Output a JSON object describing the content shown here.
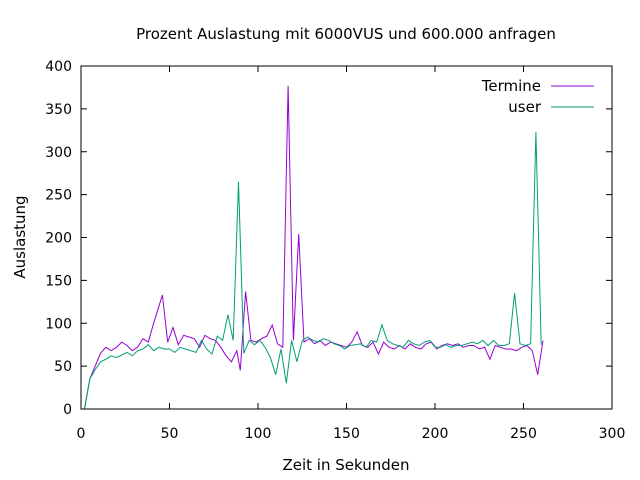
{
  "chart_data": {
    "type": "line",
    "title": "Prozent Auslastung mit 6000VUS und 600.000 anfragen",
    "xlabel": "Zeit in Sekunden",
    "ylabel": "Auslastung",
    "xlim": [
      0,
      300
    ],
    "ylim": [
      0,
      400
    ],
    "xticks": [
      0,
      50,
      100,
      150,
      200,
      250,
      300
    ],
    "yticks": [
      0,
      50,
      100,
      150,
      200,
      250,
      300,
      350,
      400
    ],
    "grid": false,
    "legend": "top-right",
    "series": [
      {
        "name": "Termine",
        "color": "#9400d3",
        "points": [
          [
            2,
            0
          ],
          [
            5,
            35
          ],
          [
            8,
            50
          ],
          [
            11,
            65
          ],
          [
            14,
            72
          ],
          [
            17,
            68
          ],
          [
            20,
            72
          ],
          [
            23,
            78
          ],
          [
            26,
            74
          ],
          [
            29,
            68
          ],
          [
            32,
            72
          ],
          [
            35,
            82
          ],
          [
            38,
            78
          ],
          [
            41,
            100
          ],
          [
            46,
            133
          ],
          [
            49,
            78
          ],
          [
            52,
            95
          ],
          [
            55,
            75
          ],
          [
            58,
            86
          ],
          [
            61,
            84
          ],
          [
            64,
            82
          ],
          [
            67,
            72
          ],
          [
            70,
            86
          ],
          [
            73,
            82
          ],
          [
            76,
            80
          ],
          [
            79,
            72
          ],
          [
            82,
            62
          ],
          [
            85,
            55
          ],
          [
            88,
            68
          ],
          [
            90,
            45
          ],
          [
            93,
            137
          ],
          [
            96,
            80
          ],
          [
            99,
            78
          ],
          [
            102,
            82
          ],
          [
            105,
            85
          ],
          [
            108,
            98
          ],
          [
            111,
            76
          ],
          [
            114,
            72
          ],
          [
            117,
            377
          ],
          [
            120,
            80
          ],
          [
            123,
            204
          ],
          [
            126,
            78
          ],
          [
            129,
            82
          ],
          [
            132,
            76
          ],
          [
            135,
            80
          ],
          [
            138,
            74
          ],
          [
            141,
            78
          ],
          [
            144,
            76
          ],
          [
            147,
            74
          ],
          [
            150,
            72
          ],
          [
            153,
            78
          ],
          [
            156,
            90
          ],
          [
            159,
            74
          ],
          [
            162,
            72
          ],
          [
            165,
            78
          ],
          [
            168,
            64
          ],
          [
            171,
            78
          ],
          [
            174,
            72
          ],
          [
            177,
            70
          ],
          [
            180,
            74
          ],
          [
            183,
            70
          ],
          [
            186,
            76
          ],
          [
            189,
            72
          ],
          [
            192,
            70
          ],
          [
            195,
            76
          ],
          [
            198,
            78
          ],
          [
            201,
            70
          ],
          [
            204,
            74
          ],
          [
            207,
            76
          ],
          [
            210,
            74
          ],
          [
            213,
            76
          ],
          [
            216,
            72
          ],
          [
            219,
            74
          ],
          [
            222,
            74
          ],
          [
            225,
            70
          ],
          [
            228,
            72
          ],
          [
            231,
            58
          ],
          [
            234,
            74
          ],
          [
            237,
            72
          ],
          [
            240,
            70
          ],
          [
            243,
            70
          ],
          [
            246,
            68
          ],
          [
            249,
            72
          ],
          [
            252,
            74
          ],
          [
            255,
            68
          ],
          [
            258,
            40
          ],
          [
            261,
            80
          ]
        ]
      },
      {
        "name": "user",
        "color": "#009e73",
        "points": [
          [
            2,
            0
          ],
          [
            5,
            35
          ],
          [
            8,
            46
          ],
          [
            11,
            55
          ],
          [
            14,
            58
          ],
          [
            17,
            62
          ],
          [
            20,
            60
          ],
          [
            23,
            63
          ],
          [
            26,
            66
          ],
          [
            29,
            62
          ],
          [
            32,
            68
          ],
          [
            35,
            70
          ],
          [
            38,
            75
          ],
          [
            41,
            68
          ],
          [
            44,
            72
          ],
          [
            47,
            70
          ],
          [
            50,
            70
          ],
          [
            53,
            66
          ],
          [
            56,
            72
          ],
          [
            59,
            70
          ],
          [
            62,
            68
          ],
          [
            65,
            66
          ],
          [
            68,
            80
          ],
          [
            71,
            70
          ],
          [
            74,
            64
          ],
          [
            77,
            85
          ],
          [
            80,
            80
          ],
          [
            83,
            110
          ],
          [
            86,
            80
          ],
          [
            89,
            265
          ],
          [
            92,
            65
          ],
          [
            95,
            80
          ],
          [
            98,
            75
          ],
          [
            101,
            80
          ],
          [
            104,
            72
          ],
          [
            107,
            60
          ],
          [
            110,
            40
          ],
          [
            113,
            70
          ],
          [
            116,
            30
          ],
          [
            119,
            80
          ],
          [
            122,
            55
          ],
          [
            125,
            80
          ],
          [
            128,
            84
          ],
          [
            131,
            80
          ],
          [
            134,
            78
          ],
          [
            137,
            82
          ],
          [
            140,
            80
          ],
          [
            143,
            76
          ],
          [
            146,
            74
          ],
          [
            149,
            70
          ],
          [
            152,
            74
          ],
          [
            155,
            75
          ],
          [
            158,
            76
          ],
          [
            161,
            72
          ],
          [
            164,
            80
          ],
          [
            167,
            78
          ],
          [
            170,
            98
          ],
          [
            173,
            80
          ],
          [
            176,
            76
          ],
          [
            179,
            74
          ],
          [
            182,
            72
          ],
          [
            185,
            80
          ],
          [
            188,
            76
          ],
          [
            191,
            74
          ],
          [
            194,
            78
          ],
          [
            197,
            80
          ],
          [
            200,
            72
          ],
          [
            203,
            72
          ],
          [
            206,
            75
          ],
          [
            209,
            72
          ],
          [
            212,
            74
          ],
          [
            215,
            74
          ],
          [
            218,
            76
          ],
          [
            221,
            78
          ],
          [
            224,
            76
          ],
          [
            227,
            80
          ],
          [
            230,
            74
          ],
          [
            233,
            80
          ],
          [
            236,
            74
          ],
          [
            239,
            74
          ],
          [
            242,
            76
          ],
          [
            245,
            135
          ],
          [
            248,
            76
          ],
          [
            251,
            74
          ],
          [
            254,
            76
          ],
          [
            257,
            323
          ],
          [
            260,
            75
          ]
        ]
      }
    ]
  }
}
